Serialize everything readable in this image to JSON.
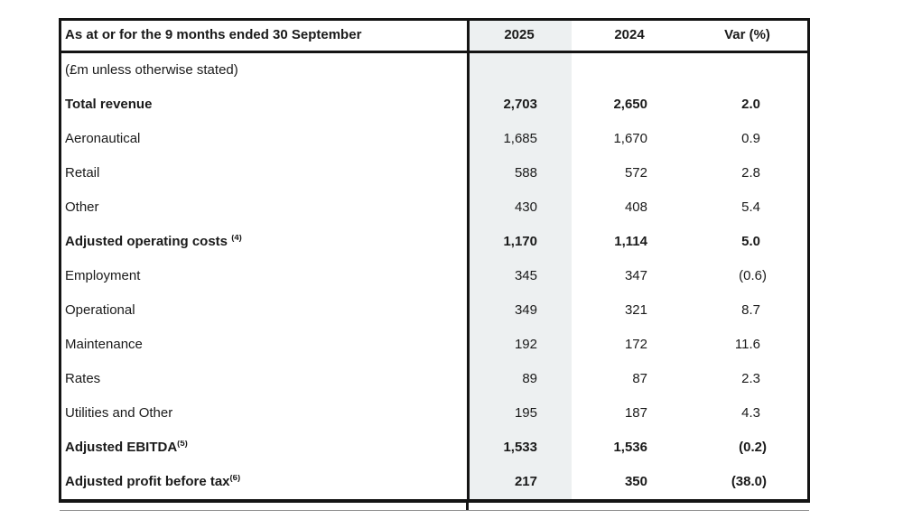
{
  "colors": {
    "highlight_column": "#edf0f1",
    "border": "#141414",
    "text": "#1a1a1a",
    "page_background": "#ffffff"
  },
  "table": {
    "header": {
      "label": "As at or for the 9 months ended 30 September",
      "col2025": "2025",
      "col2024": "2024",
      "colvar": "Var (%)"
    },
    "rows": [
      {
        "label": "(£m unless otherwise stated)",
        "sup": "",
        "v2025": "",
        "v2024": "",
        "var": "",
        "bold": false
      },
      {
        "label": "Total revenue",
        "sup": "",
        "v2025": "2,703",
        "v2024": "2,650",
        "var": "2.0",
        "bold": true
      },
      {
        "label": "Aeronautical",
        "sup": "",
        "v2025": "1,685",
        "v2024": "1,670",
        "var": "0.9",
        "bold": false
      },
      {
        "label": "Retail",
        "sup": "",
        "v2025": "588",
        "v2024": "572",
        "var": "2.8",
        "bold": false
      },
      {
        "label": "Other",
        "sup": "",
        "v2025": "430",
        "v2024": "408",
        "var": "5.4",
        "bold": false
      },
      {
        "label": "Adjusted operating costs ",
        "sup": "(4)",
        "v2025": "1,170",
        "v2024": "1,114",
        "var": "5.0",
        "bold": true
      },
      {
        "label": "Employment",
        "sup": "",
        "v2025": "345",
        "v2024": "347",
        "var": "(0.6)",
        "bold": false
      },
      {
        "label": "Operational",
        "sup": "",
        "v2025": "349",
        "v2024": "321",
        "var": "8.7",
        "bold": false
      },
      {
        "label": "Maintenance",
        "sup": "",
        "v2025": "192",
        "v2024": "172",
        "var": "11.6",
        "bold": false
      },
      {
        "label": "Rates",
        "sup": "",
        "v2025": "89",
        "v2024": "87",
        "var": "2.3",
        "bold": false
      },
      {
        "label": "Utilities and Other",
        "sup": "",
        "v2025": "195",
        "v2024": "187",
        "var": "4.3",
        "bold": false
      },
      {
        "label": "Adjusted EBITDA",
        "sup": "(5)",
        "v2025": "1,533",
        "v2024": "1,536",
        "var": "(0.2)",
        "bold": true
      },
      {
        "label": "Adjusted profit before tax",
        "sup": "(6)",
        "v2025": "217",
        "v2024": "350",
        "var": "(38.0)",
        "bold": true
      }
    ]
  }
}
